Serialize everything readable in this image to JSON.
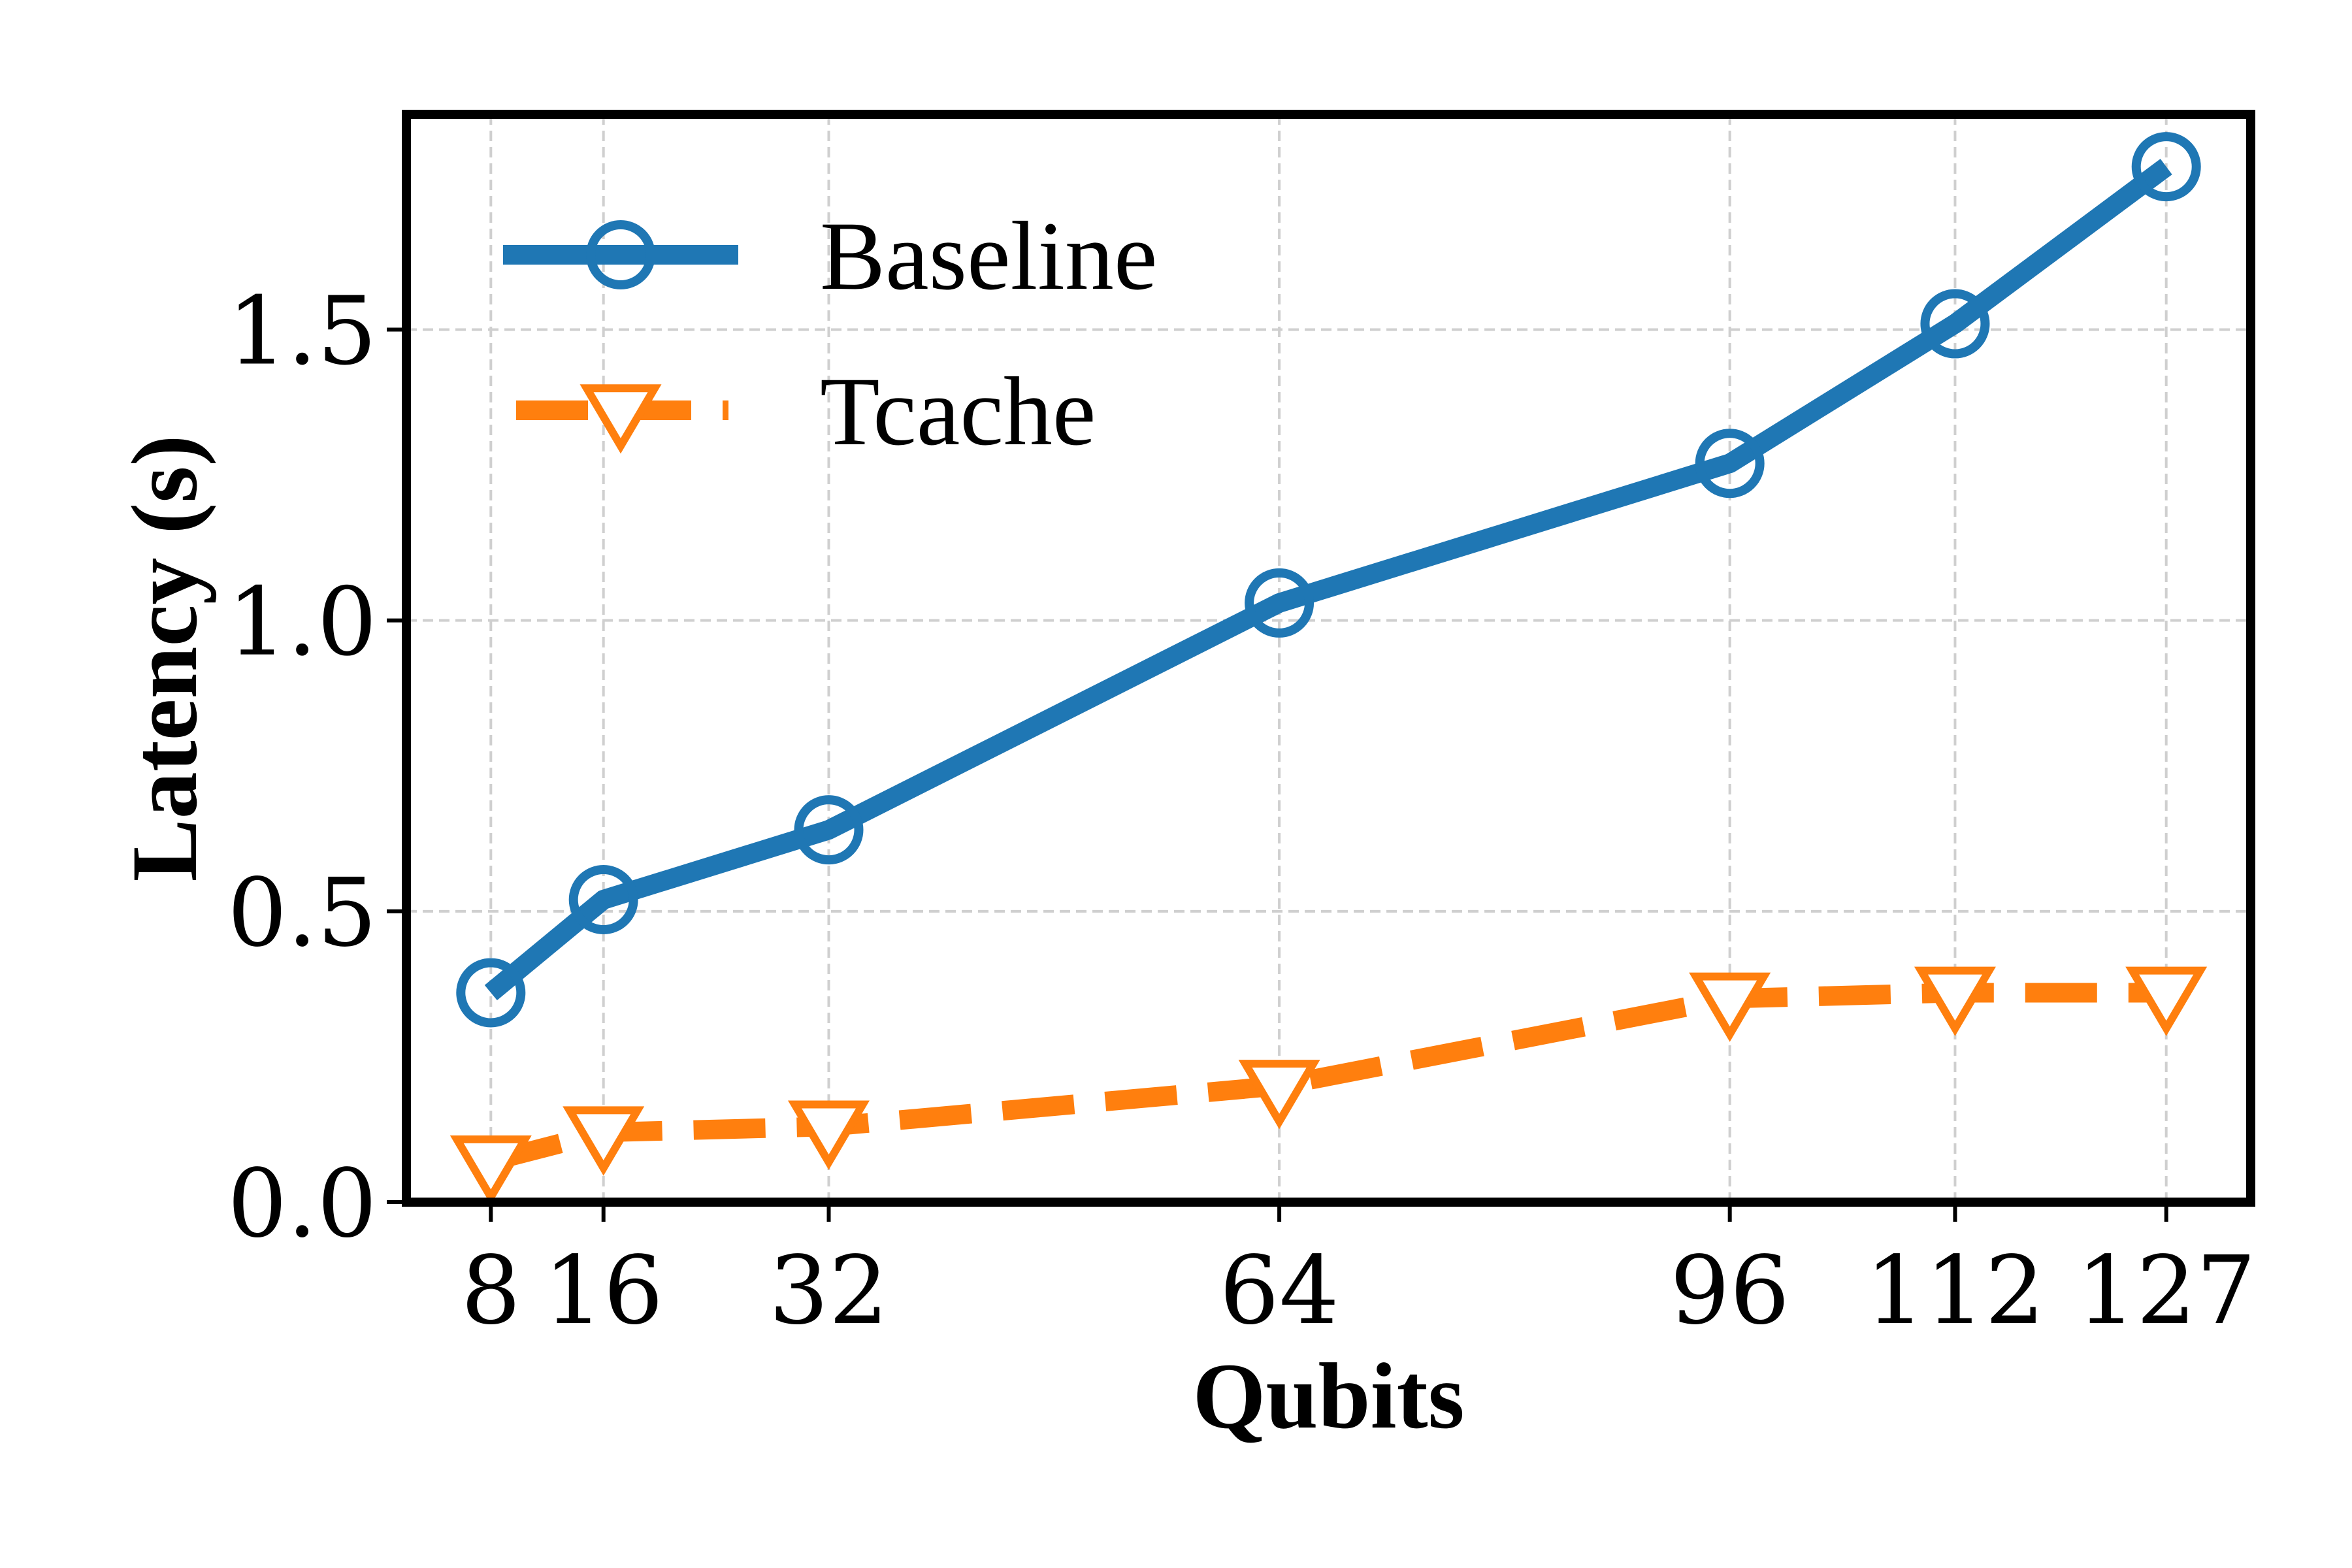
{
  "chart_data": {
    "type": "line",
    "title": "",
    "xlabel": "Qubits",
    "ylabel": "Latency (s)",
    "x": [
      8,
      16,
      32,
      64,
      96,
      112,
      127
    ],
    "x_tick_labels": [
      "8",
      "16",
      "32",
      "64",
      "96",
      "112",
      "127"
    ],
    "xlim": [
      2,
      133
    ],
    "ylim": [
      0,
      1.87
    ],
    "y_ticks": [
      0.0,
      0.5,
      1.0,
      1.5
    ],
    "y_tick_labels": [
      "0.0",
      "0.5",
      "1.0",
      "1.5"
    ],
    "grid": true,
    "legend_position": "top-left",
    "series": [
      {
        "name": "Baseline",
        "values": [
          0.36,
          0.52,
          0.64,
          1.03,
          1.27,
          1.51,
          1.78
        ],
        "color": "#1f77b4",
        "marker": "circle-open",
        "line_style": "solid"
      },
      {
        "name": "Tcache",
        "values": [
          0.07,
          0.12,
          0.13,
          0.2,
          0.35,
          0.36,
          0.36
        ],
        "color": "#ff7f0e",
        "marker": "triangle-down-open",
        "line_style": "dashed"
      }
    ]
  }
}
